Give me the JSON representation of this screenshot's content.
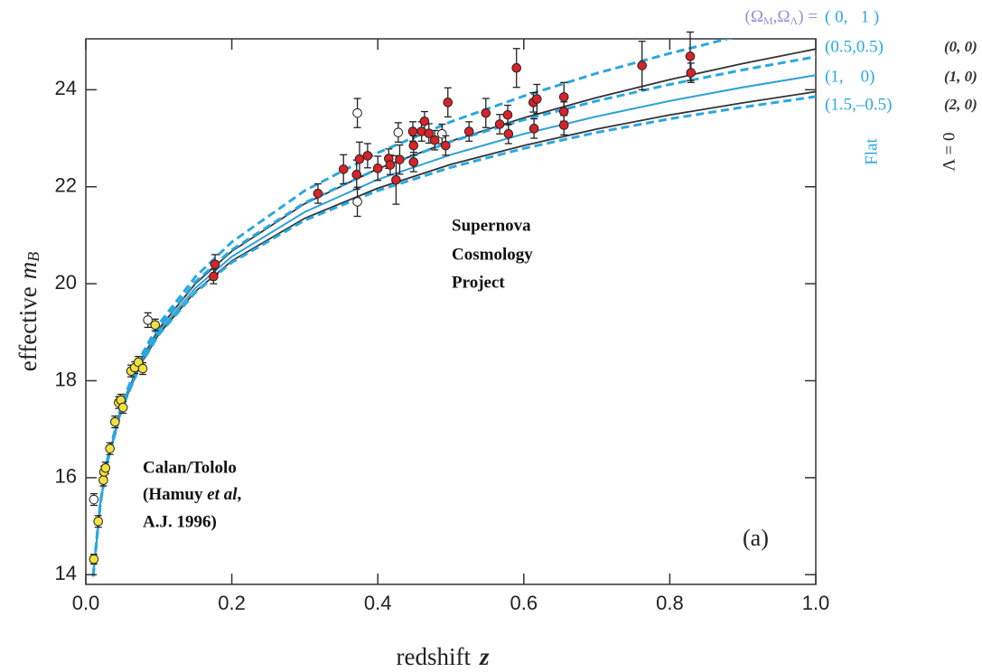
{
  "chart_data": {
    "type": "scatter",
    "xlim": [
      0,
      1.0
    ],
    "ylim": [
      13.8,
      25.05
    ],
    "xticks": [
      {
        "value": 0,
        "label": "0.0"
      },
      0.2,
      0.4,
      0.6,
      0.8,
      {
        "value": 1.0,
        "label": "1.0"
      }
    ],
    "yticks": [
      14,
      16,
      18,
      20,
      22,
      24
    ],
    "x_label": [
      "redshift",
      "z"
    ],
    "y_label": [
      "effective",
      "m",
      "B"
    ],
    "legend_title": [
      "(Ω",
      "M",
      ",Ω",
      "Λ",
      ") ="
    ],
    "flat_label": "Flat",
    "lambda_label": "Λ = 0",
    "panel_label": "(a)",
    "annotation_scp": [
      "Supernova",
      "Cosmology",
      "Project"
    ],
    "annotation_calan": [
      "Calan/Tololo",
      "(Hamuy ",
      "et al",
      ",",
      "A.J. 1996)"
    ],
    "curve_x": [
      0.01,
      0.02,
      0.03,
      0.05,
      0.075,
      0.1,
      0.15,
      0.2,
      0.3,
      0.4,
      0.5,
      0.6,
      0.7,
      0.8,
      0.9,
      1.0
    ],
    "series": [
      {
        "name": "( 0,   1 )",
        "color": "#29a8e0",
        "dashed": true,
        "values": [
          13.98,
          15.51,
          16.41,
          17.56,
          18.49,
          19.17,
          20.14,
          20.86,
          21.92,
          22.7,
          23.34,
          23.87,
          24.34,
          24.75,
          25.13,
          25.47
        ]
      },
      {
        "name": "(0.5,0.5)",
        "color": "#29a8e0",
        "dashed": true,
        "values": [
          13.97,
          15.49,
          16.39,
          17.52,
          18.43,
          19.09,
          20.04,
          20.7,
          21.67,
          22.37,
          22.93,
          23.38,
          23.77,
          24.11,
          24.41,
          24.68
        ]
      },
      {
        "name": "(1,    0)",
        "color": "#29a8e0",
        "dashed": false,
        "values": [
          13.97,
          15.48,
          16.36,
          17.48,
          18.37,
          19.01,
          19.91,
          20.56,
          21.48,
          22.15,
          22.66,
          23.09,
          23.45,
          23.77,
          24.05,
          24.3
        ]
      },
      {
        "name": "(1.5,–0.5)",
        "color": "#29a8e0",
        "dashed": true,
        "values": [
          13.96,
          15.47,
          16.35,
          17.45,
          18.33,
          18.95,
          19.82,
          20.44,
          21.31,
          21.92,
          22.4,
          22.79,
          23.12,
          23.4,
          23.64,
          23.86
        ]
      },
      {
        "name": "(0, 0)",
        "color": "#333333",
        "dashed": false,
        "values": [
          13.97,
          15.49,
          16.38,
          17.51,
          18.41,
          19.07,
          20.0,
          20.67,
          21.65,
          22.37,
          22.94,
          23.42,
          23.84,
          24.21,
          24.54,
          24.84
        ]
      },
      {
        "name": "(1, 0)",
        "color": "#333333",
        "dashed": false,
        "values": [
          13.97,
          15.48,
          16.36,
          17.48,
          18.37,
          19.01,
          19.91,
          20.56,
          21.48,
          22.15,
          22.66,
          23.09,
          23.45,
          23.77,
          24.05,
          24.3
        ]
      },
      {
        "name": "(2, 0)",
        "color": "#333333",
        "dashed": false,
        "values": [
          13.96,
          15.47,
          16.35,
          17.46,
          18.34,
          18.96,
          19.84,
          20.47,
          21.35,
          21.97,
          22.46,
          22.85,
          23.19,
          23.48,
          23.73,
          23.96
        ]
      }
    ],
    "point_sets": [
      {
        "color": "#ffffff",
        "x": [
          0.372,
          0.372,
          0.428,
          0.488,
          0.085,
          0.011
        ],
        "values": [
          23.52,
          21.69,
          23.12,
          23.09,
          19.25,
          15.55
        ],
        "errors": [
          0.3,
          0.3,
          0.2,
          0.2,
          0.15,
          0.12
        ]
      },
      {
        "color": "#f2e03c",
        "x": [
          0.011,
          0.017,
          0.024,
          0.025,
          0.027,
          0.033,
          0.04,
          0.045,
          0.048,
          0.051,
          0.062,
          0.067,
          0.072,
          0.078,
          0.095
        ],
        "values": [
          14.32,
          15.1,
          15.95,
          16.12,
          16.2,
          16.6,
          17.15,
          17.55,
          17.6,
          17.45,
          18.2,
          18.27,
          18.38,
          18.25,
          19.15
        ],
        "errors": [
          0.1,
          0.12,
          0.12,
          0.12,
          0.12,
          0.12,
          0.12,
          0.12,
          0.12,
          0.12,
          0.12,
          0.12,
          0.12,
          0.12,
          0.12
        ]
      },
      {
        "color": "#d8232a",
        "x": [
          0.175,
          0.177,
          0.318,
          0.353,
          0.371,
          0.375,
          0.386,
          0.4,
          0.415,
          0.417,
          0.425,
          0.43,
          0.448,
          0.449,
          0.449,
          0.46,
          0.464,
          0.47,
          0.478,
          0.493,
          0.496,
          0.525,
          0.548,
          0.567,
          0.578,
          0.579,
          0.59,
          0.613,
          0.614,
          0.618,
          0.655,
          0.655,
          0.655,
          0.762,
          0.828,
          0.829
        ],
        "values": [
          20.15,
          20.4,
          21.86,
          22.36,
          22.25,
          22.57,
          22.64,
          22.38,
          22.58,
          22.45,
          22.14,
          22.56,
          23.14,
          22.85,
          22.51,
          23.14,
          23.35,
          23.1,
          22.96,
          22.85,
          23.74,
          23.14,
          23.52,
          23.29,
          23.48,
          23.09,
          24.45,
          23.74,
          23.2,
          23.81,
          23.85,
          23.55,
          23.27,
          24.5,
          24.69,
          24.35
        ],
        "errors": [
          0.15,
          0.2,
          0.2,
          0.3,
          0.3,
          0.35,
          0.25,
          0.25,
          0.2,
          0.2,
          0.5,
          0.3,
          0.2,
          0.2,
          0.2,
          0.2,
          0.2,
          0.2,
          0.2,
          0.2,
          0.3,
          0.2,
          0.3,
          0.2,
          0.2,
          0.2,
          0.4,
          0.2,
          0.2,
          0.3,
          0.3,
          0.2,
          0.2,
          0.5,
          0.5,
          0.2
        ]
      }
    ]
  }
}
